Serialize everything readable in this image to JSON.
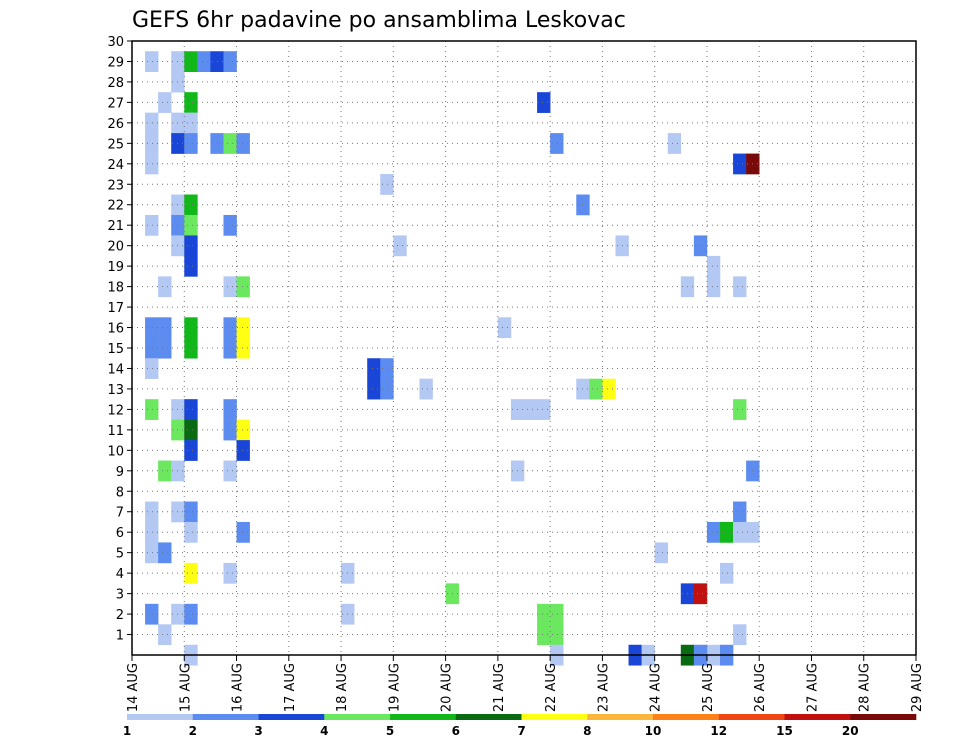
{
  "chart_data": {
    "type": "heatmap",
    "title": "GEFS 6hr padavine po ansamblima Leskovac",
    "x_tick_labels": [
      "14 AUG",
      "15 AUG",
      "16 AUG",
      "17 AUG",
      "18 AUG",
      "19 AUG",
      "20 AUG",
      "21 AUG",
      "22 AUG",
      "23 AUG",
      "24 AUG",
      "25 AUG",
      "26 AUG",
      "27 AUG",
      "28 AUG",
      "29 AUG"
    ],
    "y_tick_labels": [
      "1",
      "2",
      "3",
      "4",
      "5",
      "6",
      "7",
      "8",
      "9",
      "10",
      "11",
      "12",
      "13",
      "14",
      "15",
      "16",
      "17",
      "18",
      "19",
      "20",
      "21",
      "22",
      "23",
      "24",
      "25",
      "26",
      "27",
      "28",
      "29",
      "30"
    ],
    "xlim_days": [
      0,
      15
    ],
    "ylim_members": [
      0,
      30
    ],
    "grid": true,
    "legend_placement": "bottom",
    "legend_labels": [
      "1",
      "2",
      "3",
      "4",
      "5",
      "6",
      "7",
      "8",
      "10",
      "12",
      "15",
      "20"
    ],
    "legend_colors": [
      "#b4c8f4",
      "#5c8cf0",
      "#1a46d8",
      "#6ce860",
      "#12b81a",
      "#0a6a12",
      "#ffff14",
      "#fcb63c",
      "#fc8218",
      "#f04614",
      "#c01010",
      "#7a0a0a"
    ],
    "cells": [
      {
        "t": 1,
        "m": 29,
        "c": 1
      },
      {
        "t": 1,
        "m": 26,
        "c": 1
      },
      {
        "t": 1,
        "m": 25,
        "c": 1
      },
      {
        "t": 1,
        "m": 24,
        "c": 1
      },
      {
        "t": 1,
        "m": 21,
        "c": 1
      },
      {
        "t": 1,
        "m": 16,
        "c": 2
      },
      {
        "t": 1,
        "m": 15,
        "c": 2
      },
      {
        "t": 1,
        "m": 14,
        "c": 1
      },
      {
        "t": 1,
        "m": 12,
        "c": 4
      },
      {
        "t": 1,
        "m": 7,
        "c": 1
      },
      {
        "t": 1,
        "m": 6,
        "c": 1
      },
      {
        "t": 1,
        "m": 5,
        "c": 1
      },
      {
        "t": 1,
        "m": 2,
        "c": 2
      },
      {
        "t": 2,
        "m": 27,
        "c": 1
      },
      {
        "t": 2,
        "m": 16,
        "c": 2
      },
      {
        "t": 2,
        "m": 15,
        "c": 2
      },
      {
        "t": 2,
        "m": 18,
        "c": 1
      },
      {
        "t": 2,
        "m": 9,
        "c": 4
      },
      {
        "t": 2,
        "m": 5,
        "c": 2
      },
      {
        "t": 2,
        "m": 1,
        "c": 1
      },
      {
        "t": 3,
        "m": 29,
        "c": 1
      },
      {
        "t": 3,
        "m": 28,
        "c": 1
      },
      {
        "t": 3,
        "m": 26,
        "c": 1
      },
      {
        "t": 3,
        "m": 25,
        "c": 3
      },
      {
        "t": 3,
        "m": 22,
        "c": 1
      },
      {
        "t": 3,
        "m": 21,
        "c": 2
      },
      {
        "t": 3,
        "m": 20,
        "c": 1
      },
      {
        "t": 3,
        "m": 12,
        "c": 1
      },
      {
        "t": 3,
        "m": 11,
        "c": 4
      },
      {
        "t": 3,
        "m": 9,
        "c": 1
      },
      {
        "t": 3,
        "m": 7,
        "c": 1
      },
      {
        "t": 3,
        "m": 2,
        "c": 1
      },
      {
        "t": 4,
        "m": 29,
        "c": 5
      },
      {
        "t": 4,
        "m": 27,
        "c": 5
      },
      {
        "t": 4,
        "m": 26,
        "c": 1
      },
      {
        "t": 4,
        "m": 25,
        "c": 2
      },
      {
        "t": 4,
        "m": 22,
        "c": 5
      },
      {
        "t": 4,
        "m": 21,
        "c": 4
      },
      {
        "t": 4,
        "m": 20,
        "c": 3
      },
      {
        "t": 4,
        "m": 19,
        "c": 3
      },
      {
        "t": 4,
        "m": 16,
        "c": 5
      },
      {
        "t": 4,
        "m": 15,
        "c": 5
      },
      {
        "t": 4,
        "m": 12,
        "c": 3
      },
      {
        "t": 4,
        "m": 11,
        "c": 6
      },
      {
        "t": 4,
        "m": 10,
        "c": 3
      },
      {
        "t": 4,
        "m": 7,
        "c": 2
      },
      {
        "t": 4,
        "m": 6,
        "c": 1
      },
      {
        "t": 4,
        "m": 4,
        "c": 7
      },
      {
        "t": 4,
        "m": 2,
        "c": 2
      },
      {
        "t": 4,
        "m": 0,
        "c": 1
      },
      {
        "t": 5,
        "m": 29,
        "c": 2
      },
      {
        "t": 6,
        "m": 29,
        "c": 3
      },
      {
        "t": 6,
        "m": 25,
        "c": 2
      },
      {
        "t": 7,
        "m": 29,
        "c": 2
      },
      {
        "t": 7,
        "m": 25,
        "c": 4
      },
      {
        "t": 7,
        "m": 21,
        "c": 2
      },
      {
        "t": 7,
        "m": 18,
        "c": 1
      },
      {
        "t": 7,
        "m": 16,
        "c": 2
      },
      {
        "t": 7,
        "m": 15,
        "c": 2
      },
      {
        "t": 7,
        "m": 12,
        "c": 2
      },
      {
        "t": 7,
        "m": 11,
        "c": 2
      },
      {
        "t": 7,
        "m": 9,
        "c": 1
      },
      {
        "t": 7,
        "m": 4,
        "c": 1
      },
      {
        "t": 8,
        "m": 25,
        "c": 2
      },
      {
        "t": 8,
        "m": 18,
        "c": 4
      },
      {
        "t": 8,
        "m": 16,
        "c": 7
      },
      {
        "t": 8,
        "m": 15,
        "c": 7
      },
      {
        "t": 8,
        "m": 11,
        "c": 7
      },
      {
        "t": 8,
        "m": 10,
        "c": 3
      },
      {
        "t": 8,
        "m": 6,
        "c": 2
      },
      {
        "t": 16,
        "m": 4,
        "c": 1
      },
      {
        "t": 16,
        "m": 2,
        "c": 1
      },
      {
        "t": 18,
        "m": 13,
        "c": 3
      },
      {
        "t": 18,
        "m": 14,
        "c": 3
      },
      {
        "t": 19,
        "m": 23,
        "c": 1
      },
      {
        "t": 19,
        "m": 13,
        "c": 2
      },
      {
        "t": 19,
        "m": 14,
        "c": 2
      },
      {
        "t": 20,
        "m": 20,
        "c": 1
      },
      {
        "t": 22,
        "m": 13,
        "c": 1
      },
      {
        "t": 24,
        "m": 3,
        "c": 4
      },
      {
        "t": 28,
        "m": 16,
        "c": 1
      },
      {
        "t": 29,
        "m": 12,
        "c": 1
      },
      {
        "t": 29,
        "m": 9,
        "c": 1
      },
      {
        "t": 30,
        "m": 12,
        "c": 1
      },
      {
        "t": 31,
        "m": 27,
        "c": 3
      },
      {
        "t": 31,
        "m": 12,
        "c": 1
      },
      {
        "t": 31,
        "m": 2,
        "c": 4
      },
      {
        "t": 31,
        "m": 1,
        "c": 4
      },
      {
        "t": 32,
        "m": 25,
        "c": 2
      },
      {
        "t": 32,
        "m": 2,
        "c": 4
      },
      {
        "t": 32,
        "m": 1,
        "c": 4
      },
      {
        "t": 32,
        "m": 0,
        "c": 1
      },
      {
        "t": 34,
        "m": 22,
        "c": 2
      },
      {
        "t": 34,
        "m": 13,
        "c": 1
      },
      {
        "t": 35,
        "m": 13,
        "c": 4
      },
      {
        "t": 36,
        "m": 13,
        "c": 7
      },
      {
        "t": 37,
        "m": 20,
        "c": 1
      },
      {
        "t": 38,
        "m": 0,
        "c": 3
      },
      {
        "t": 39,
        "m": 0,
        "c": 1
      },
      {
        "t": 40,
        "m": 5,
        "c": 1
      },
      {
        "t": 41,
        "m": 25,
        "c": 1
      },
      {
        "t": 42,
        "m": 18,
        "c": 1
      },
      {
        "t": 42,
        "m": 3,
        "c": 3
      },
      {
        "t": 43,
        "m": 20,
        "c": 2
      },
      {
        "t": 43,
        "m": 3,
        "c": 11
      },
      {
        "t": 44,
        "m": 19,
        "c": 1
      },
      {
        "t": 44,
        "m": 18,
        "c": 1
      },
      {
        "t": 44,
        "m": 6,
        "c": 2
      },
      {
        "t": 44,
        "m": 0,
        "c": 1
      },
      {
        "t": 45,
        "m": 6,
        "c": 5
      },
      {
        "t": 45,
        "m": 4,
        "c": 1
      },
      {
        "t": 45,
        "m": 0,
        "c": 2
      },
      {
        "t": 46,
        "m": 24,
        "c": 3
      },
      {
        "t": 46,
        "m": 18,
        "c": 1
      },
      {
        "t": 46,
        "m": 12,
        "c": 4
      },
      {
        "t": 46,
        "m": 7,
        "c": 2
      },
      {
        "t": 46,
        "m": 6,
        "c": 1
      },
      {
        "t": 46,
        "m": 1,
        "c": 1
      },
      {
        "t": 47,
        "m": 24,
        "c": 12
      },
      {
        "t": 47,
        "m": 9,
        "c": 2
      },
      {
        "t": 47,
        "m": 6,
        "c": 1
      },
      {
        "t": 42,
        "m": 0,
        "c": 6
      },
      {
        "t": 43,
        "m": 0,
        "c": 2
      }
    ]
  }
}
